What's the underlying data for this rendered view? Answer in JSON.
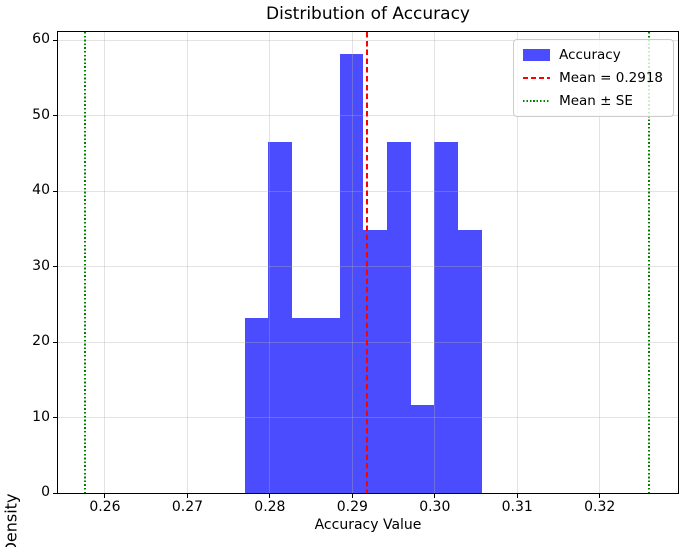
{
  "chart_data": {
    "type": "histogram",
    "title": "Distribution of Accuracy",
    "xlabel": "Accuracy Value",
    "ylabel": "Density",
    "xlim": [
      0.2543,
      0.3295
    ],
    "ylim": [
      0,
      61.1
    ],
    "grid": {
      "visible": true,
      "color": "#b0b0b0",
      "alpha": 0.35
    },
    "xticks": [
      {
        "value": 0.26,
        "label": "0.26"
      },
      {
        "value": 0.27,
        "label": "0.27"
      },
      {
        "value": 0.28,
        "label": "0.28"
      },
      {
        "value": 0.29,
        "label": "0.29"
      },
      {
        "value": 0.3,
        "label": "0.30"
      },
      {
        "value": 0.31,
        "label": "0.31"
      },
      {
        "value": 0.32,
        "label": "0.32"
      }
    ],
    "yticks": [
      {
        "value": 0,
        "label": "0"
      },
      {
        "value": 10,
        "label": "10"
      },
      {
        "value": 20,
        "label": "20"
      },
      {
        "value": 30,
        "label": "30"
      },
      {
        "value": 40,
        "label": "40"
      },
      {
        "value": 50,
        "label": "50"
      },
      {
        "value": 60,
        "label": "60"
      }
    ],
    "bars": {
      "color": "#0000ff",
      "alpha": 0.7,
      "bin_edges": [
        0.277,
        0.2798,
        0.2827,
        0.2856,
        0.2885,
        0.2913,
        0.2942,
        0.2971,
        0.2999,
        0.3028,
        0.3057
      ],
      "densities": [
        23.26,
        46.51,
        23.26,
        23.26,
        58.14,
        34.88,
        46.51,
        11.63,
        46.51,
        34.88
      ]
    },
    "vlines": [
      {
        "name": "mean-line",
        "value": 0.2918,
        "color": "#ff0000",
        "style": "dashed"
      },
      {
        "name": "mean-minus-se-line",
        "value": 0.2576,
        "color": "#008000",
        "style": "dotted"
      },
      {
        "name": "mean-plus-se-line",
        "value": 0.326,
        "color": "#008000",
        "style": "dotted"
      }
    ],
    "legend": [
      {
        "label": "Accuracy",
        "swatch": "patch",
        "color": "#0000ff",
        "alpha": 0.7
      },
      {
        "label": "Mean = 0.2918",
        "swatch": "dashed-line",
        "color": "#ff0000"
      },
      {
        "label": "Mean ± SE",
        "swatch": "dotted-line",
        "color": "#008000"
      }
    ],
    "stats": {
      "mean": 0.2918,
      "mean_label": "Mean = 0.2918",
      "se_band": [
        0.2576,
        0.326
      ]
    }
  }
}
